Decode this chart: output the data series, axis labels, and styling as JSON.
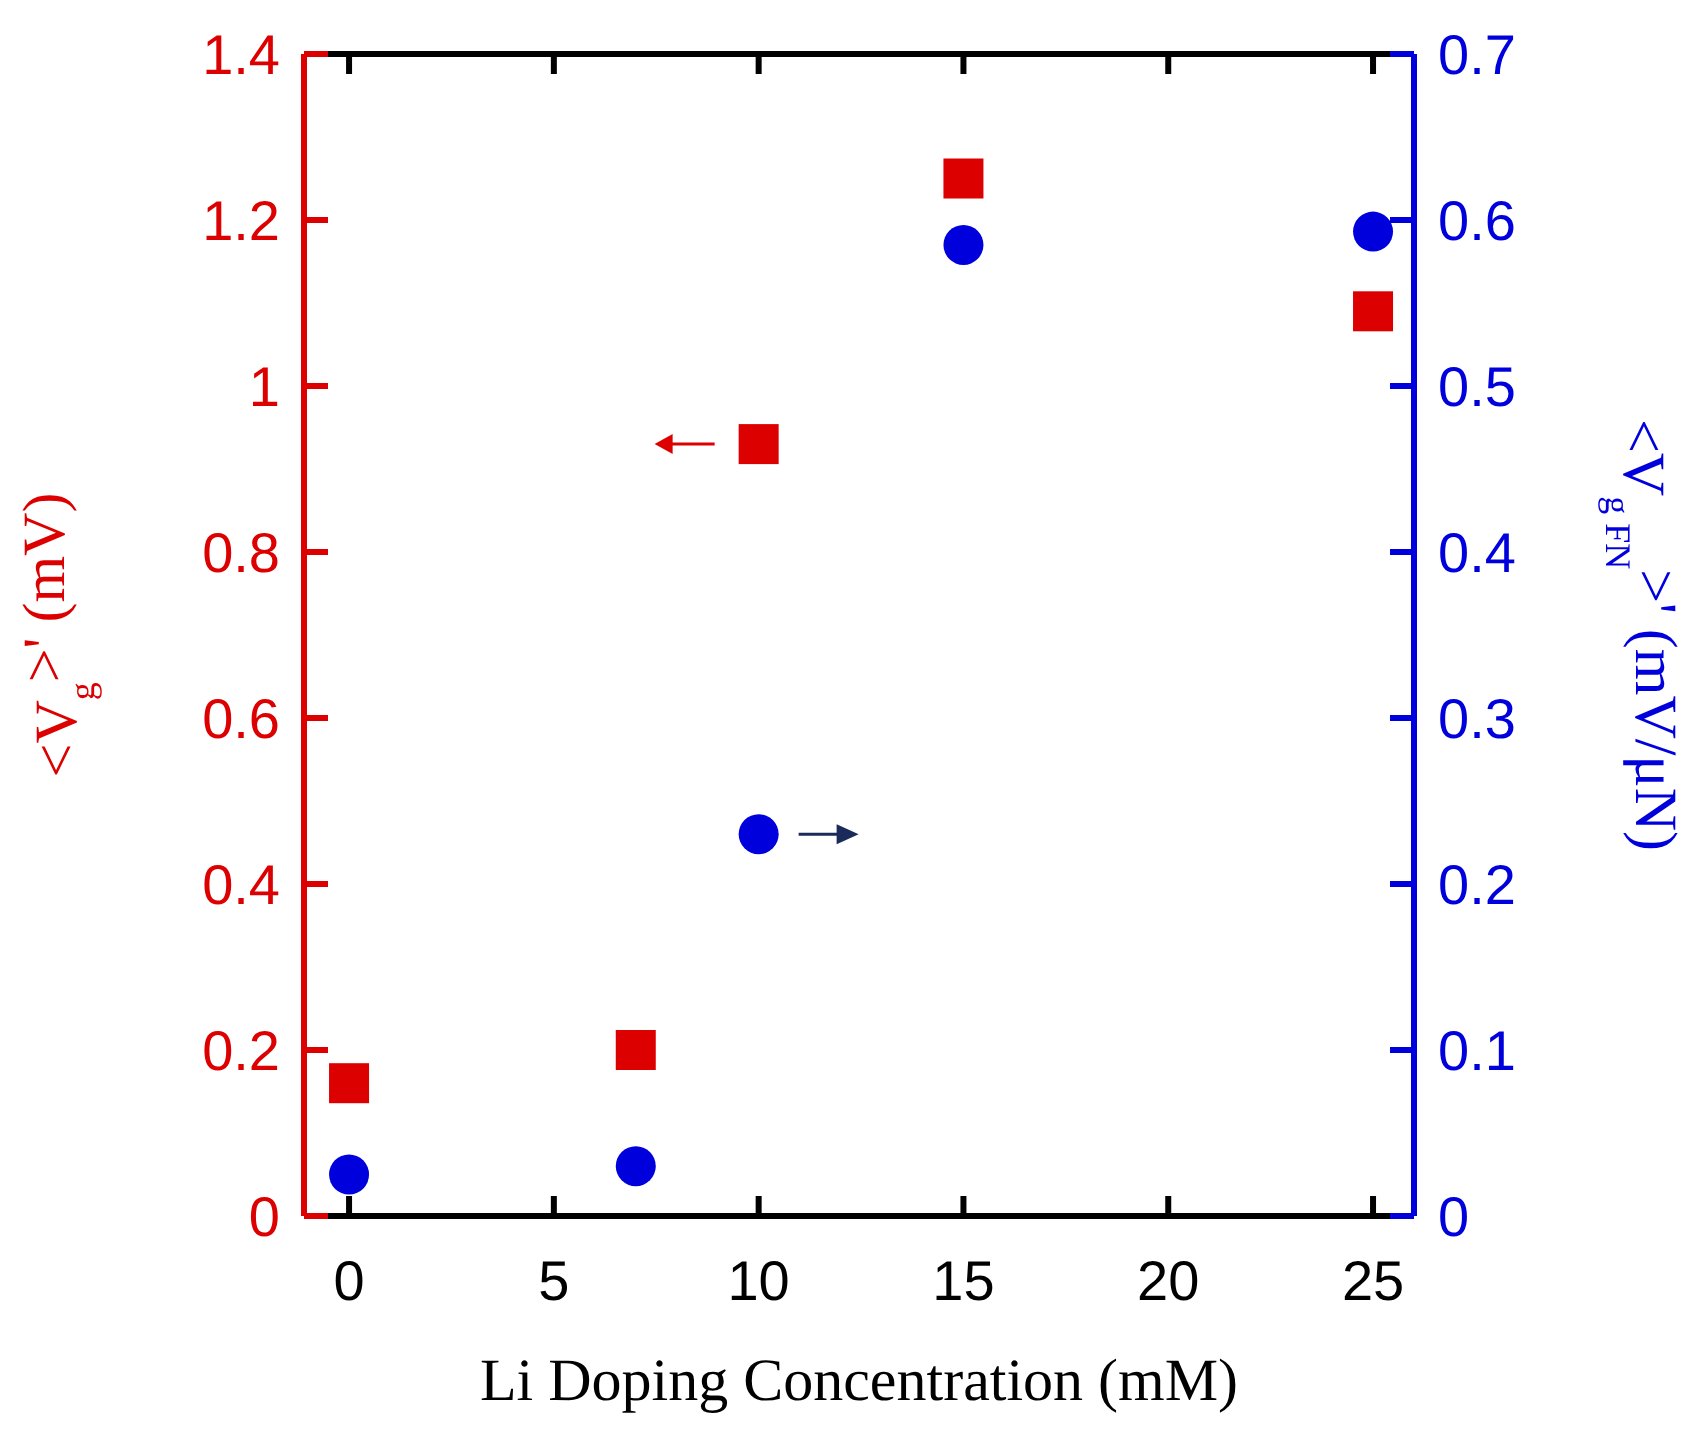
{
  "chart_data": {
    "type": "scatter",
    "xlabel": "Li Doping Concentration (mM)",
    "ylabel": "<V$_{g}$>' (mV)",
    "y2label": "<V$_{g FN}$>' (mV/μN)",
    "x": [
      0,
      7,
      10,
      15,
      25
    ],
    "xlim": [
      -1.1,
      26
    ],
    "xticks": [
      0,
      5,
      10,
      15,
      20,
      25
    ],
    "ylim": [
      0,
      1.4
    ],
    "yticks": [
      0,
      0.2,
      0.4,
      0.6,
      0.8,
      1,
      1.2,
      1.4
    ],
    "y2lim": [
      0,
      0.7
    ],
    "y2ticks": [
      0,
      0.1,
      0.2,
      0.3,
      0.4,
      0.5,
      0.6,
      0.7
    ],
    "series": [
      {
        "color": "#dd0000",
        "marker": "square",
        "values": [
          0.16,
          0.2,
          0.93,
          1.25,
          1.09
        ]
      },
      {
        "color": "#0000dd",
        "marker": "circle",
        "axis": "y2",
        "values": [
          0.025,
          0.03,
          0.23,
          0.585,
          0.593
        ]
      }
    ],
    "grid": false
  }
}
